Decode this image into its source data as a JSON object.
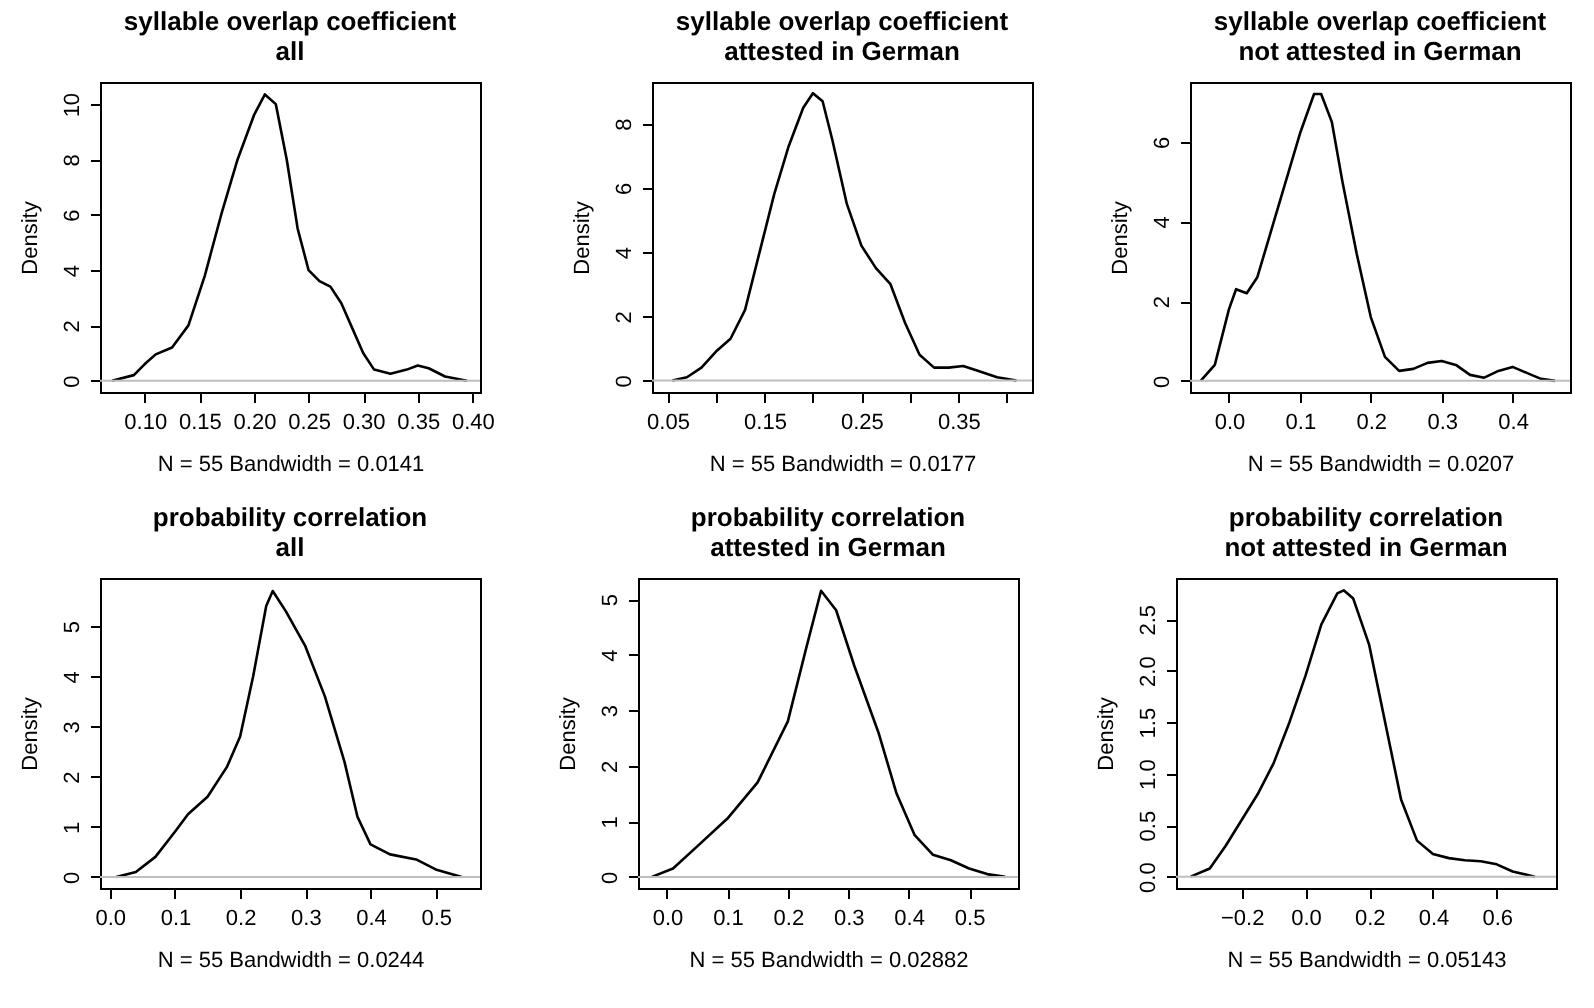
{
  "chart_data": [
    {
      "type": "line",
      "title": "syllable overlap coefficient\nall",
      "xlabel": "N = 55   Bandwidth = 0.0141",
      "ylabel": "Density",
      "grid": false,
      "line_style": "solid",
      "x": [
        0.07,
        0.09,
        0.1,
        0.11,
        0.125,
        0.14,
        0.155,
        0.17,
        0.185,
        0.2,
        0.21,
        0.22,
        0.23,
        0.24,
        0.25,
        0.26,
        0.27,
        0.28,
        0.29,
        0.3,
        0.31,
        0.325,
        0.34,
        0.35,
        0.36,
        0.375,
        0.395
      ],
      "series": [
        {
          "color": "#000000",
          "values": [
            0,
            0.2,
            0.6,
            0.95,
            1.2,
            2,
            3.8,
            6,
            8,
            9.6,
            10.35,
            10,
            8,
            5.5,
            4,
            3.6,
            3.4,
            2.8,
            1.9,
            1,
            0.4,
            0.25,
            0.4,
            0.55,
            0.45,
            0.15,
            0
          ]
        }
      ],
      "xlim": [
        0.059,
        0.407
      ],
      "xticks": [
        {
          "value": 0.1,
          "label": "0.10"
        },
        {
          "value": 0.15,
          "label": "0.15"
        },
        {
          "value": 0.2,
          "label": "0.20"
        },
        {
          "value": 0.25,
          "label": "0.25"
        },
        {
          "value": 0.3,
          "label": "0.30"
        },
        {
          "value": 0.35,
          "label": "0.35"
        },
        {
          "value": 0.4,
          "label": "0.40"
        }
      ],
      "ylim": [
        -0.41,
        10.8
      ],
      "yticks": [
        0,
        2,
        4,
        6,
        8,
        10
      ],
      "ref_lines": [
        {
          "axis": "y",
          "value": 0,
          "color": "#bebebe"
        }
      ]
    },
    {
      "type": "line",
      "title": "syllable overlap coefficient\nattested in German",
      "xlabel": "N = 55   Bandwidth = 0.0177",
      "ylabel": "Density",
      "grid": false,
      "line_style": "solid",
      "x": [
        0.055,
        0.07,
        0.085,
        0.1,
        0.115,
        0.13,
        0.145,
        0.16,
        0.175,
        0.19,
        0.2,
        0.21,
        0.22,
        0.235,
        0.25,
        0.265,
        0.28,
        0.295,
        0.31,
        0.325,
        0.34,
        0.355,
        0.37,
        0.39,
        0.41
      ],
      "series": [
        {
          "color": "#000000",
          "values": [
            0,
            0.1,
            0.4,
            0.9,
            1.3,
            2.2,
            4,
            5.8,
            7.3,
            8.5,
            8.95,
            8.7,
            7.5,
            5.5,
            4.2,
            3.5,
            3,
            1.8,
            0.8,
            0.4,
            0.4,
            0.45,
            0.3,
            0.1,
            0
          ]
        }
      ],
      "xlim": [
        0.034,
        0.426
      ],
      "xticks": [
        {
          "value": 0.05,
          "label": "0.05"
        },
        {
          "value": 0.1,
          "label": null
        },
        {
          "value": 0.15,
          "label": "0.15"
        },
        {
          "value": 0.2,
          "label": null
        },
        {
          "value": 0.25,
          "label": "0.25"
        },
        {
          "value": 0.3,
          "label": null
        },
        {
          "value": 0.35,
          "label": "0.35"
        },
        {
          "value": 0.4,
          "label": null
        }
      ],
      "ylim": [
        -0.36,
        9.3
      ],
      "yticks": [
        0,
        2,
        4,
        6,
        8
      ],
      "ref_lines": [
        {
          "axis": "y",
          "value": 0,
          "color": "#bebebe"
        }
      ]
    },
    {
      "type": "line",
      "title": "syllable overlap coefficient\nnot attested in German",
      "xlabel": "N = 55   Bandwidth = 0.0207",
      "ylabel": "Density",
      "grid": false,
      "line_style": "solid",
      "x": [
        -0.04,
        -0.02,
        0,
        0.01,
        0.025,
        0.04,
        0.06,
        0.08,
        0.1,
        0.12,
        0.13,
        0.145,
        0.16,
        0.18,
        0.2,
        0.22,
        0.24,
        0.26,
        0.28,
        0.3,
        0.32,
        0.34,
        0.36,
        0.38,
        0.4,
        0.42,
        0.44,
        0.46
      ],
      "series": [
        {
          "color": "#000000",
          "values": [
            0,
            0.4,
            1.8,
            2.3,
            2.2,
            2.6,
            3.8,
            5,
            6.2,
            7.2,
            7.2,
            6.5,
            5,
            3.2,
            1.6,
            0.6,
            0.25,
            0.3,
            0.45,
            0.5,
            0.4,
            0.15,
            0.08,
            0.25,
            0.35,
            0.2,
            0.05,
            0
          ]
        }
      ],
      "xlim": [
        -0.055,
        0.481
      ],
      "xticks": [
        {
          "value": 0,
          "label": "0.0"
        },
        {
          "value": 0.1,
          "label": "0.1"
        },
        {
          "value": 0.2,
          "label": "0.2"
        },
        {
          "value": 0.3,
          "label": "0.3"
        },
        {
          "value": 0.4,
          "label": "0.4"
        }
      ],
      "ylim": [
        -0.28,
        7.5
      ],
      "yticks": [
        0,
        2,
        4,
        6
      ],
      "ref_lines": [
        {
          "axis": "y",
          "value": 0,
          "color": "#bebebe"
        }
      ]
    },
    {
      "type": "line",
      "title": "probability correlation\nall",
      "xlabel": "N = 55   Bandwidth = 0.0244",
      "ylabel": "Density",
      "grid": false,
      "line_style": "solid",
      "x": [
        0.01,
        0.04,
        0.07,
        0.1,
        0.12,
        0.15,
        0.18,
        0.2,
        0.22,
        0.24,
        0.25,
        0.27,
        0.3,
        0.33,
        0.36,
        0.38,
        0.4,
        0.43,
        0.47,
        0.5,
        0.54
      ],
      "series": [
        {
          "color": "#000000",
          "values": [
            0,
            0.1,
            0.4,
            0.9,
            1.25,
            1.6,
            2.2,
            2.8,
            4,
            5.4,
            5.7,
            5.3,
            4.6,
            3.6,
            2.3,
            1.2,
            0.65,
            0.45,
            0.35,
            0.15,
            0
          ]
        }
      ],
      "xlim": [
        -0.015,
        0.568
      ],
      "xticks": [
        {
          "value": 0,
          "label": "0.0"
        },
        {
          "value": 0.1,
          "label": "0.1"
        },
        {
          "value": 0.2,
          "label": "0.2"
        },
        {
          "value": 0.3,
          "label": "0.3"
        },
        {
          "value": 0.4,
          "label": "0.4"
        },
        {
          "value": 0.5,
          "label": "0.5"
        }
      ],
      "ylim": [
        -0.22,
        5.96
      ],
      "yticks": [
        0,
        1,
        2,
        3,
        4,
        5
      ],
      "ref_lines": [
        {
          "axis": "y",
          "value": 0,
          "color": "#bebebe"
        }
      ]
    },
    {
      "type": "line",
      "title": "probability correlation\nattested in German",
      "xlabel": "N = 55   Bandwidth = 0.02882",
      "ylabel": "Density",
      "grid": false,
      "line_style": "solid",
      "x": [
        -0.025,
        0.01,
        0.05,
        0.1,
        0.15,
        0.2,
        0.23,
        0.255,
        0.28,
        0.31,
        0.35,
        0.38,
        0.41,
        0.44,
        0.47,
        0.5,
        0.53,
        0.56
      ],
      "series": [
        {
          "color": "#000000",
          "values": [
            0,
            0.15,
            0.55,
            1.05,
            1.7,
            2.8,
            4.1,
            5.15,
            4.8,
            3.8,
            2.6,
            1.5,
            0.75,
            0.4,
            0.3,
            0.15,
            0.05,
            0
          ]
        }
      ],
      "xlim": [
        -0.048,
        0.581
      ],
      "xticks": [
        {
          "value": 0,
          "label": "0.0"
        },
        {
          "value": 0.1,
          "label": "0.1"
        },
        {
          "value": 0.2,
          "label": "0.2"
        },
        {
          "value": 0.3,
          "label": "0.3"
        },
        {
          "value": 0.4,
          "label": "0.4"
        },
        {
          "value": 0.5,
          "label": "0.5"
        }
      ],
      "ylim": [
        -0.2,
        5.38
      ],
      "yticks": [
        0,
        1,
        2,
        3,
        4,
        5
      ],
      "ref_lines": [
        {
          "axis": "y",
          "value": 0,
          "color": "#bebebe"
        }
      ]
    },
    {
      "type": "line",
      "title": "probability correlation\nnot attested in German",
      "xlabel": "N = 55   Bandwidth = 0.05143",
      "ylabel": "Density",
      "grid": false,
      "line_style": "solid",
      "x": [
        -0.36,
        -0.3,
        -0.25,
        -0.2,
        -0.15,
        -0.1,
        -0.05,
        0,
        0.05,
        0.1,
        0.12,
        0.15,
        0.2,
        0.25,
        0.3,
        0.35,
        0.4,
        0.45,
        0.5,
        0.55,
        0.6,
        0.65,
        0.72
      ],
      "series": [
        {
          "color": "#000000",
          "values": [
            0,
            0.08,
            0.3,
            0.55,
            0.8,
            1.1,
            1.5,
            1.95,
            2.45,
            2.75,
            2.78,
            2.7,
            2.25,
            1.5,
            0.75,
            0.35,
            0.22,
            0.18,
            0.16,
            0.15,
            0.12,
            0.05,
            0
          ]
        }
      ],
      "xlim": [
        -0.406,
        0.786
      ],
      "xticks": [
        {
          "value": -0.2,
          "label": "−0.2"
        },
        {
          "value": 0,
          "label": "0.0"
        },
        {
          "value": 0.2,
          "label": "0.2"
        },
        {
          "value": 0.4,
          "label": "0.4"
        },
        {
          "value": 0.6,
          "label": "0.6"
        }
      ],
      "ylim": [
        -0.11,
        2.9
      ],
      "yticks": [
        {
          "value": 0,
          "label": "0.0"
        },
        {
          "value": 0.5,
          "label": "0.5"
        },
        {
          "value": 1,
          "label": "1.0"
        },
        {
          "value": 1.5,
          "label": "1.5"
        },
        {
          "value": 2,
          "label": "2.0"
        },
        {
          "value": 2.5,
          "label": "2.5"
        }
      ],
      "ref_lines": [
        {
          "axis": "y",
          "value": 0,
          "color": "#bebebe"
        }
      ]
    }
  ]
}
